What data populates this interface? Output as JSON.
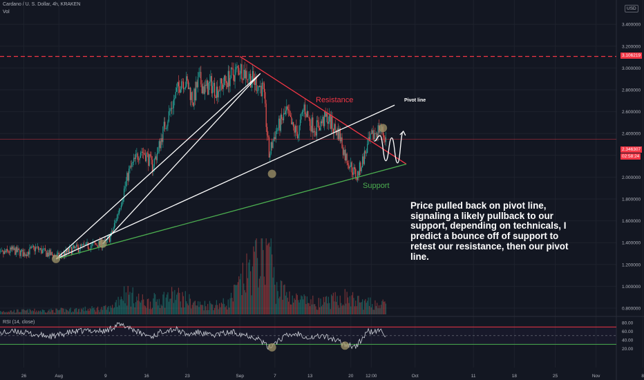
{
  "header": {
    "symbol_line": "Cardano / U. S. Dollar, 4h, KRAKEN",
    "vol_label": "Vol"
  },
  "currency": "USD",
  "annotation_text": "Price pulled back on pivot line, signaling a likely pullback to our support, depending on technicals, I predict a bounce off of support to retest our resistance, then our pivot line.",
  "labels": {
    "resistance": "Resistance",
    "support": "Support",
    "pivot": "Pivot line"
  },
  "price_badges": {
    "resistance_price": "3.106219",
    "current_price": "2.346307",
    "countdown": "02:58:24"
  },
  "rsi_label": "RSI (14, close)",
  "colors": {
    "background": "#131722",
    "up": "#26a69a",
    "down": "#ef5350",
    "resistance": "#f23645",
    "support": "#4caf50",
    "pivot": "#ffffff",
    "rsi": "#d1d4dc",
    "circle": "#a3956a"
  },
  "chart_data": {
    "type": "candlestick",
    "yaxis_ticks": [
      "3.400000",
      "3.200000",
      "3.000000",
      "2.800000",
      "2.600000",
      "2.400000",
      "2.200000",
      "2.000000",
      "1.800000",
      "1.600000",
      "1.400000",
      "1.200000",
      "1.000000",
      "0.800000"
    ],
    "yaxis_tick_values": [
      3.4,
      3.2,
      3.0,
      2.8,
      2.6,
      2.4,
      2.2,
      2.0,
      1.8,
      1.6,
      1.4,
      1.2,
      1.0,
      0.8
    ],
    "xaxis_ticks": [
      "26",
      "Aug",
      "9",
      "16",
      "23",
      "Sep",
      "7",
      "13",
      "20",
      "12:00",
      "Oct",
      "11",
      "18",
      "25",
      "Nov",
      "8"
    ],
    "xaxis_tick_days": [
      -5,
      1,
      9,
      16,
      23,
      32,
      38,
      44,
      51,
      54.5,
      62,
      72,
      79,
      86,
      93,
      101
    ],
    "ylim": [
      0.78,
      3.48
    ],
    "resistance_price": 3.106,
    "current_price": 2.346,
    "price_path": [
      [
        -10,
        1.27
      ],
      [
        -7,
        1.33
      ],
      [
        -5,
        1.3
      ],
      [
        -3,
        1.35
      ],
      [
        -1,
        1.3
      ],
      [
        1,
        1.27
      ],
      [
        3,
        1.33
      ],
      [
        5,
        1.36
      ],
      [
        7,
        1.38
      ],
      [
        9,
        1.4
      ],
      [
        10,
        1.47
      ],
      [
        11,
        1.65
      ],
      [
        12,
        1.85
      ],
      [
        13,
        2.05
      ],
      [
        14,
        2.15
      ],
      [
        15,
        2.25
      ],
      [
        16,
        2.2
      ],
      [
        17,
        2.1
      ],
      [
        18,
        2.25
      ],
      [
        19,
        2.45
      ],
      [
        20,
        2.6
      ],
      [
        21,
        2.75
      ],
      [
        22,
        2.9
      ],
      [
        23,
        2.85
      ],
      [
        24,
        2.7
      ],
      [
        25,
        2.9
      ],
      [
        26,
        2.8
      ],
      [
        27,
        2.85
      ],
      [
        28,
        2.8
      ],
      [
        29,
        2.85
      ],
      [
        30,
        2.9
      ],
      [
        31,
        2.95
      ],
      [
        32,
        3.0
      ],
      [
        33,
        2.95
      ],
      [
        34,
        2.9
      ],
      [
        35,
        2.85
      ],
      [
        36,
        2.8
      ],
      [
        37,
        2.2
      ],
      [
        38,
        2.4
      ],
      [
        39,
        2.5
      ],
      [
        40,
        2.6
      ],
      [
        41,
        2.45
      ],
      [
        42,
        2.4
      ],
      [
        43,
        2.65
      ],
      [
        44,
        2.5
      ],
      [
        45,
        2.45
      ],
      [
        46,
        2.5
      ],
      [
        47,
        2.55
      ],
      [
        48,
        2.45
      ],
      [
        49,
        2.4
      ],
      [
        50,
        2.2
      ],
      [
        51,
        2.1
      ],
      [
        52,
        2.0
      ],
      [
        53,
        2.15
      ],
      [
        54,
        2.3
      ],
      [
        55,
        2.4
      ],
      [
        56,
        2.45
      ],
      [
        57,
        2.35
      ]
    ],
    "volume_profile": [
      [
        -10,
        0.04
      ],
      [
        0,
        0.05
      ],
      [
        10,
        0.08
      ],
      [
        12,
        0.28
      ],
      [
        16,
        0.15
      ],
      [
        21,
        0.25
      ],
      [
        25,
        0.12
      ],
      [
        30,
        0.14
      ],
      [
        37,
        0.95
      ],
      [
        38,
        0.35
      ],
      [
        42,
        0.18
      ],
      [
        46,
        0.14
      ],
      [
        50,
        0.22
      ],
      [
        53,
        0.15
      ],
      [
        57,
        0.12
      ]
    ],
    "rsi": {
      "label": "RSI (14, close)",
      "ticks": [
        "80.00",
        "60.00",
        "40.00",
        "20.00"
      ],
      "tick_values": [
        80,
        60,
        40,
        20
      ],
      "overbought": 70,
      "oversold": 30,
      "mid": 50,
      "path": [
        [
          -10,
          55
        ],
        [
          -6,
          60
        ],
        [
          -3,
          52
        ],
        [
          0,
          48
        ],
        [
          3,
          58
        ],
        [
          6,
          62
        ],
        [
          9,
          60
        ],
        [
          11,
          75
        ],
        [
          13,
          70
        ],
        [
          15,
          55
        ],
        [
          17,
          48
        ],
        [
          19,
          62
        ],
        [
          21,
          65
        ],
        [
          23,
          52
        ],
        [
          25,
          58
        ],
        [
          27,
          50
        ],
        [
          29,
          55
        ],
        [
          31,
          58
        ],
        [
          33,
          52
        ],
        [
          35,
          45
        ],
        [
          37,
          22
        ],
        [
          38,
          35
        ],
        [
          40,
          50
        ],
        [
          42,
          55
        ],
        [
          44,
          45
        ],
        [
          46,
          50
        ],
        [
          48,
          42
        ],
        [
          50,
          30
        ],
        [
          52,
          25
        ],
        [
          53,
          45
        ],
        [
          54,
          60
        ],
        [
          55,
          58
        ],
        [
          56,
          62
        ],
        [
          57,
          52
        ]
      ]
    },
    "trendlines": [
      {
        "name": "Resistance",
        "from": [
          32,
          3.106
        ],
        "to": [
          60.5,
          2.12
        ]
      },
      {
        "name": "Support",
        "from": [
          0.5,
          1.25
        ],
        "to": [
          60.5,
          2.12
        ]
      },
      {
        "name": "Pivot line",
        "from": [
          0.5,
          1.25
        ],
        "to": [
          58.5,
          2.66
        ]
      },
      {
        "name": "fan",
        "from": [
          0.5,
          1.25
        ],
        "to": [
          35.5,
          2.95
        ]
      },
      {
        "name": "fan",
        "from": [
          8.5,
          1.39
        ],
        "to": [
          35.5,
          2.95
        ]
      }
    ],
    "forecast_path": [
      [
        55,
        2.33
      ],
      [
        56,
        2.38
      ],
      [
        57,
        2.15
      ],
      [
        58,
        2.36
      ],
      [
        59,
        2.13
      ],
      [
        60,
        2.42
      ]
    ],
    "highlight_points": [
      [
        0.5,
        1.25
      ],
      [
        8.5,
        1.39
      ],
      [
        37.5,
        2.03
      ],
      [
        56.5,
        2.45
      ]
    ],
    "rsi_highlight_points": [
      [
        37.5,
        23
      ],
      [
        50,
        27
      ]
    ]
  }
}
